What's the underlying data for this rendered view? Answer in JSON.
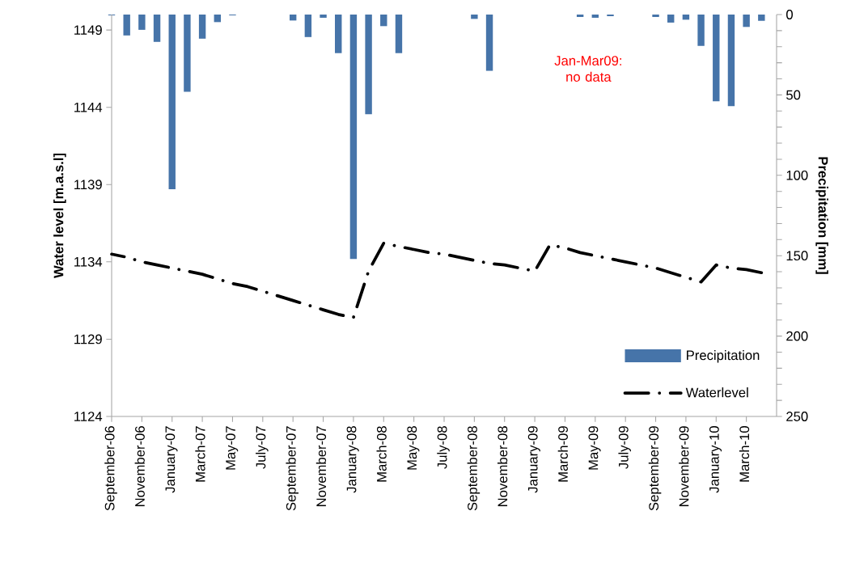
{
  "chart_data": {
    "type": "bar",
    "categories": [
      "September-06",
      null,
      "November-06",
      null,
      "January-07",
      null,
      "March-07",
      null,
      "May-07",
      null,
      "July-07",
      null,
      "September-07",
      null,
      "November-07",
      null,
      "January-08",
      null,
      "March-08",
      null,
      "May-08",
      null,
      "July-08",
      null,
      "September-08",
      null,
      "November-08",
      null,
      "January-09",
      null,
      "March-09",
      null,
      "May-09",
      null,
      "July-09",
      null,
      "September-09",
      null,
      "November-09",
      null,
      "January-10",
      null,
      "March-10",
      null
    ],
    "series": [
      {
        "name": "Precipitation",
        "axis": "y2",
        "color": "#4674a9",
        "values": [
          0.5,
          13,
          9.5,
          17,
          108.7,
          48,
          15,
          4.7,
          0.5,
          0,
          0,
          0,
          3.7,
          14,
          2,
          24,
          152,
          62,
          7.2,
          24,
          0,
          0,
          0,
          0,
          2.7,
          35,
          0,
          0,
          null,
          null,
          null,
          1.5,
          2,
          1,
          0,
          0,
          1.5,
          5,
          3.2,
          19.5,
          54,
          57,
          7.7,
          3.9
        ]
      },
      {
        "name": "Waterlevel",
        "type": "line",
        "axis": "y",
        "color": "#000000",
        "line_style": "dashdot",
        "values": [
          1134.5,
          1134.3,
          1134.0,
          1133.8,
          1133.6,
          1133.4,
          1133.2,
          1132.9,
          1132.6,
          1132.4,
          1132.1,
          1131.8,
          1131.5,
          1131.2,
          1130.9,
          1130.6,
          1130.4,
          1133.4,
          1135.2,
          1135.0,
          1134.8,
          1134.6,
          1134.5,
          1134.3,
          1134.1,
          1133.9,
          1133.8,
          1133.6,
          1133.4,
          1135.1,
          1134.9,
          1134.6,
          1134.4,
          1134.2,
          1134.0,
          1133.8,
          1133.6,
          1133.3,
          1133.0,
          1132.7,
          1133.8,
          1133.6,
          1133.5,
          1133.3
        ]
      }
    ],
    "ylim": [
      1124,
      1150
    ],
    "yticks": [
      1124,
      1129,
      1134,
      1139,
      1144,
      1149
    ],
    "y2lim": [
      250,
      0
    ],
    "y2ticks": [
      0,
      50,
      100,
      150,
      200,
      250
    ],
    "ylabel": "Water level [m.a.s.l]",
    "y2label": "Precipitation [mm]",
    "annotations": [
      "Jan-Mar09: no data"
    ],
    "legend": "bottom right"
  }
}
